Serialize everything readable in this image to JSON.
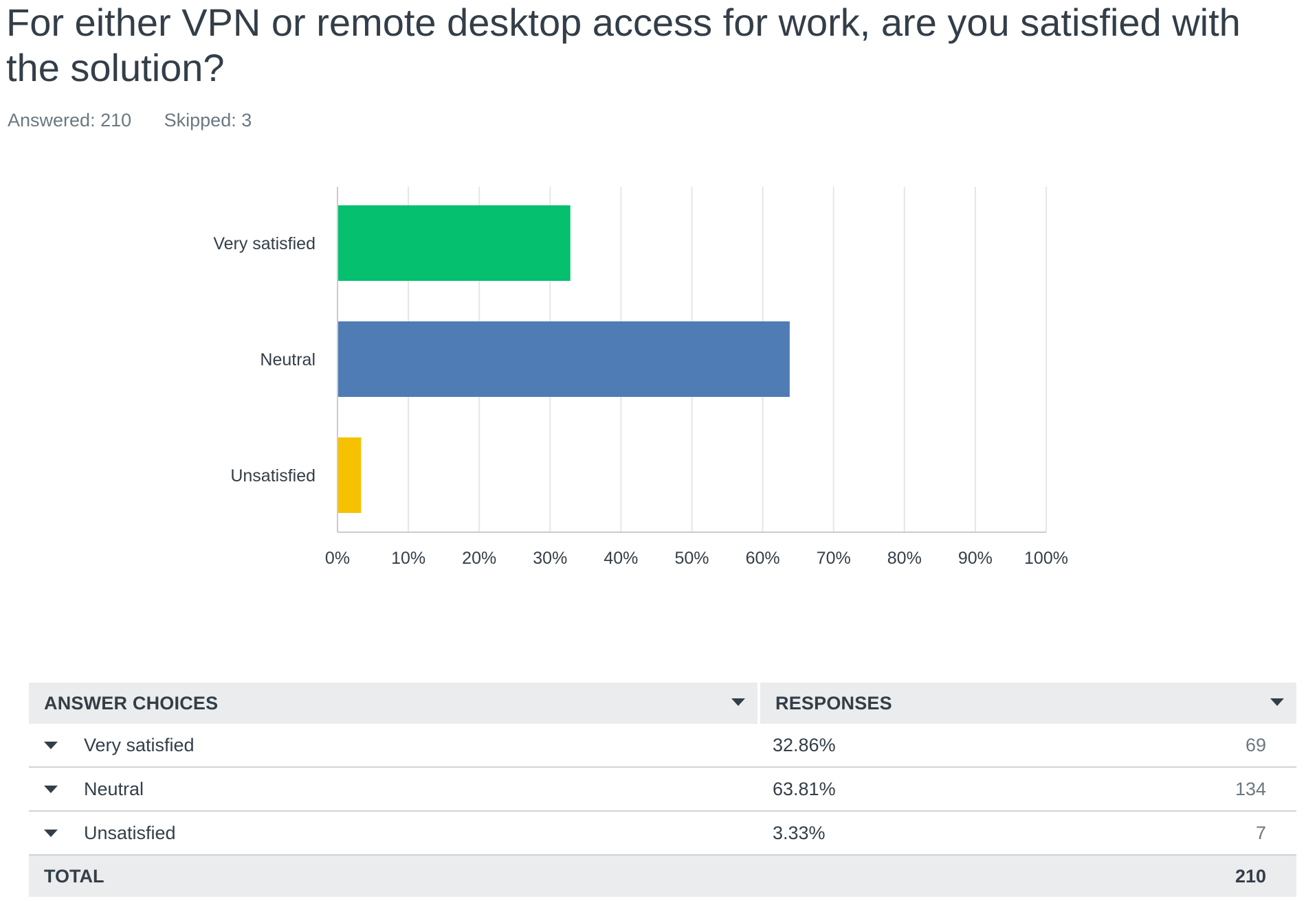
{
  "question": {
    "title": "For either VPN or remote desktop access for work, are you satisfied with the solution?",
    "answered": "Answered: 210",
    "skipped": "Skipped: 3"
  },
  "chart_data": {
    "type": "bar",
    "orientation": "horizontal",
    "categories": [
      "Very satisfied",
      "Neutral",
      "Unsatisfied"
    ],
    "values": [
      32.86,
      63.81,
      3.33
    ],
    "colors": [
      "#05c06e",
      "#507cb6",
      "#f6c100"
    ],
    "xlim": [
      0,
      100
    ],
    "xticks": [
      "0%",
      "10%",
      "20%",
      "30%",
      "40%",
      "50%",
      "60%",
      "70%",
      "80%",
      "90%",
      "100%"
    ],
    "grid": true,
    "title": "",
    "xlabel": "",
    "ylabel": ""
  },
  "table": {
    "headers": {
      "choices": "ANSWER CHOICES",
      "responses": "RESPONSES"
    },
    "rows": [
      {
        "choice": "Very satisfied",
        "percent": "32.86%",
        "count": "69"
      },
      {
        "choice": "Neutral",
        "percent": "63.81%",
        "count": "134"
      },
      {
        "choice": "Unsatisfied",
        "percent": "3.33%",
        "count": "7"
      }
    ],
    "total": {
      "label": "TOTAL",
      "count": "210"
    }
  },
  "icons": {
    "sort": "chevron-down-icon",
    "expand": "caret-down-icon"
  },
  "colors": {
    "text": "#333e48",
    "muted": "#6b787f",
    "header_bg": "#ebeced",
    "grid": "#e4e6e7"
  }
}
